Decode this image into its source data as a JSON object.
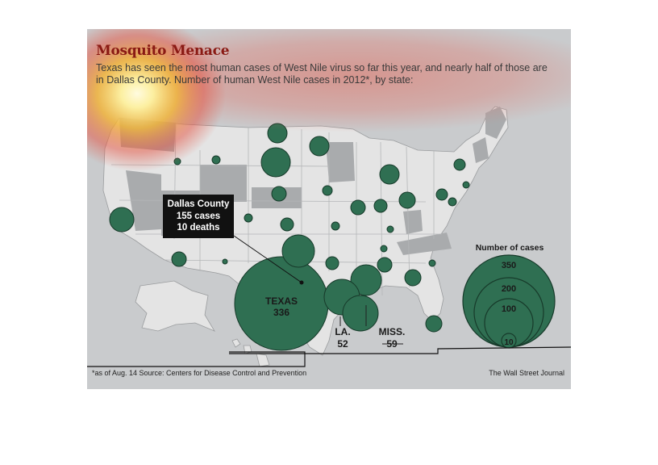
{
  "title": "Mosquito Menace",
  "subtitle": "Texas has seen the most human cases of West Nile virus so far this year, and nearly half of those are in Dallas County. Number of human West Nile cases in 2012*, by state:",
  "callout": {
    "line1": "Dallas County",
    "line2": "155 cases",
    "line3": "10 deaths"
  },
  "labels": {
    "texas_name": "TEXAS",
    "texas_value": "336",
    "la_name": "LA.",
    "la_value": "52",
    "miss_name": "MISS.",
    "miss_value": "59"
  },
  "legend": {
    "title": "Number of cases",
    "values": [
      "350",
      "200",
      "100",
      "10"
    ]
  },
  "footer": {
    "note": "*as of Aug. 14   Source: Centers for Disease Control and Prevention",
    "credit": "The Wall Street Journal"
  },
  "colors": {
    "land": "#e4e4e4",
    "land_dark": "#a9abad",
    "water": "#c9cbcd",
    "bubble_fill": "#2f6f52",
    "bubble_stroke": "#173a2a",
    "title": "#8a1a14",
    "heat_hot": "#fff7a8",
    "heat_warm": "#e84c3a"
  }
}
